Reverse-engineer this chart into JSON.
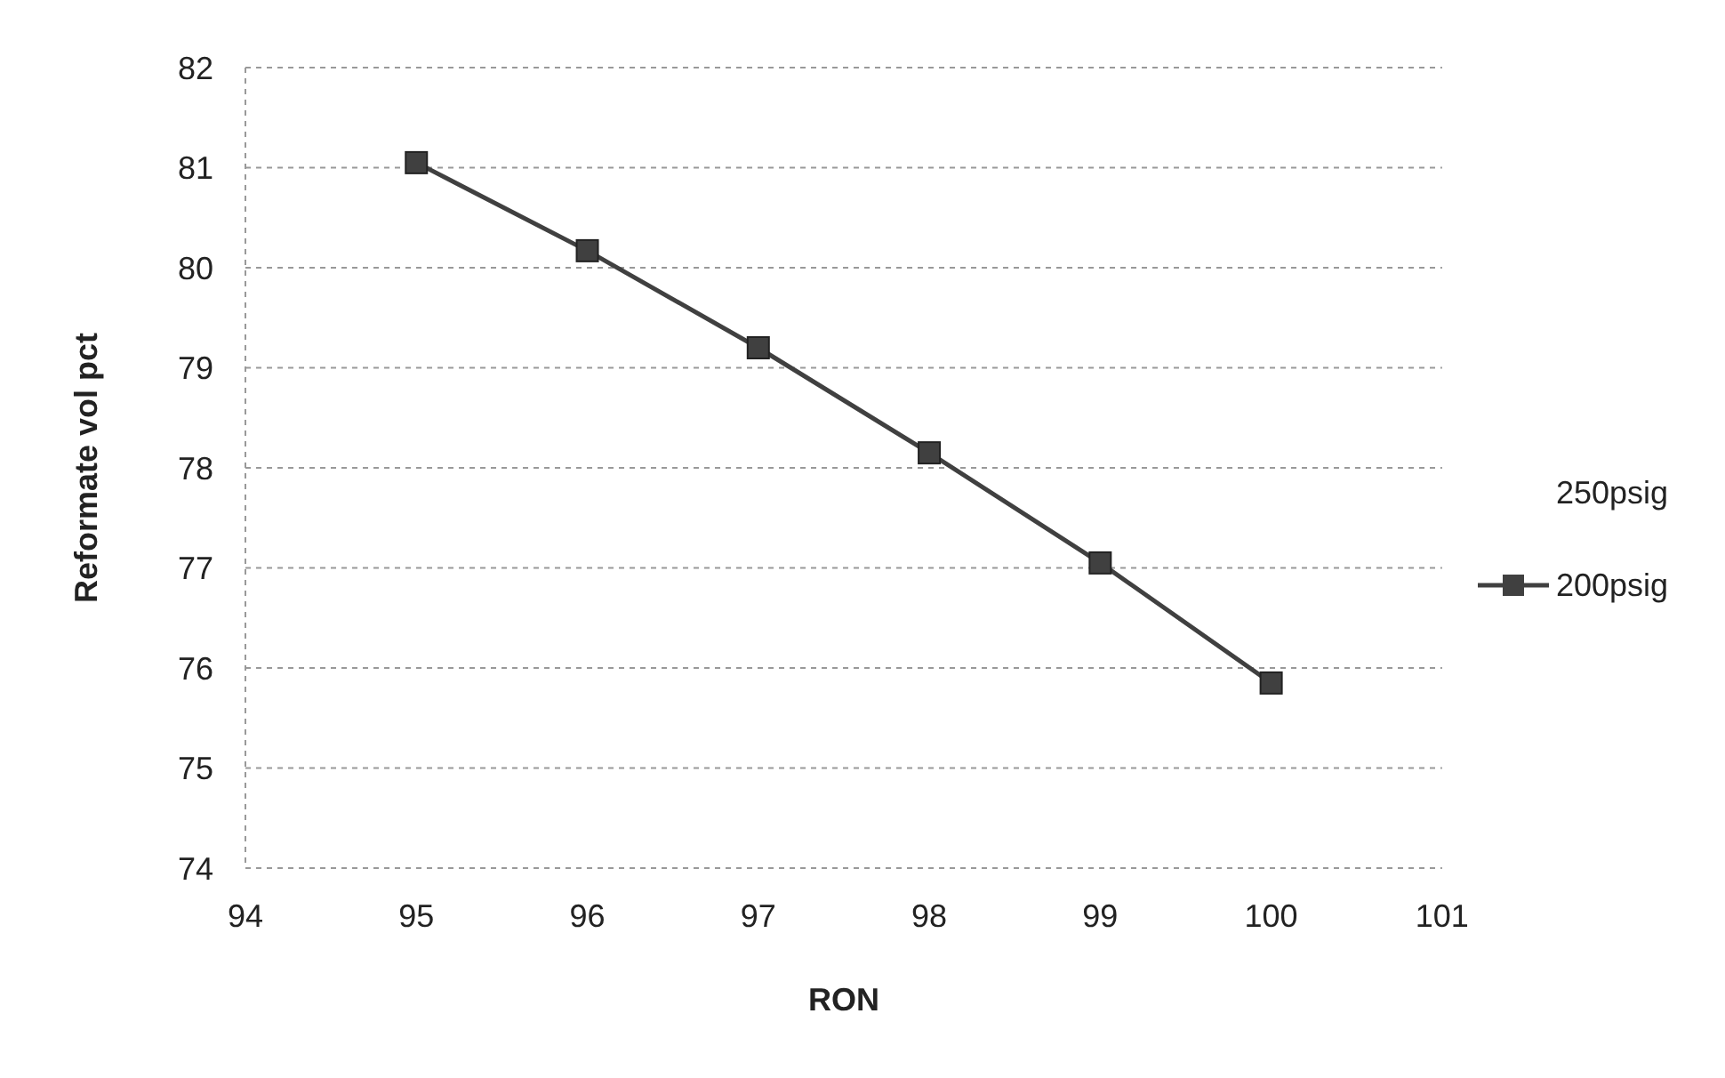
{
  "chart_data": {
    "type": "line",
    "xlabel": "RON",
    "ylabel": "Reformate vol pct",
    "x": [
      95,
      96,
      97,
      98,
      99,
      100
    ],
    "series": [
      {
        "name": "250psig",
        "values": [
          null,
          null,
          null,
          null,
          null,
          null
        ]
      },
      {
        "name": "200psig",
        "color": "#404040",
        "values": [
          81.05,
          80.17,
          79.2,
          78.15,
          77.05,
          75.85
        ]
      }
    ],
    "xlim": [
      94,
      101
    ],
    "xticks": [
      94,
      95,
      96,
      97,
      98,
      99,
      100,
      101
    ],
    "ylim": [
      74,
      82
    ],
    "yticks": [
      74,
      75,
      76,
      77,
      78,
      79,
      80,
      81,
      82
    ],
    "grid": "y",
    "legend": "right",
    "marker": "square",
    "line_style": "solid"
  }
}
